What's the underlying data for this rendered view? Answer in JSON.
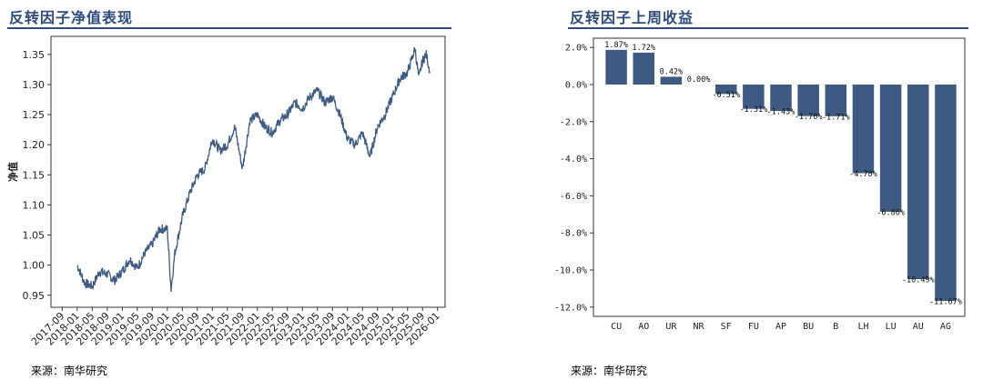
{
  "left_panel": {
    "title": "反转因子净值表现",
    "source": "来源：南华研究"
  },
  "right_panel": {
    "title": "反转因子上周收益",
    "source": "来源：南华研究"
  },
  "colors": {
    "accent": "#2e4a7a",
    "series": "#3f5a80",
    "bar": "#3f5a80"
  },
  "chart_data": [
    {
      "type": "line",
      "title": "反转因子净值表现",
      "ylabel": "净值",
      "xlabel": "",
      "grid": false,
      "x_ticks": [
        "2017-09",
        "2018-01",
        "2018-05",
        "2018-09",
        "2019-01",
        "2019-05",
        "2019-09",
        "2020-01",
        "2020-05",
        "2020-09",
        "2021-01",
        "2021-05",
        "2021-09",
        "2022-01",
        "2022-05",
        "2022-09",
        "2023-01",
        "2023-05",
        "2023-09",
        "2024-01",
        "2024-05",
        "2024-09",
        "2025-01",
        "2025-05",
        "2025-09",
        "2026-01"
      ],
      "y_ticks": [
        "0.95",
        "1.00",
        "1.05",
        "1.10",
        "1.15",
        "1.20",
        "1.25",
        "1.30",
        "1.35"
      ],
      "xlim": [
        "2017-06",
        "2026-03"
      ],
      "ylim": [
        0.93,
        1.38
      ],
      "series": [
        {
          "x": [
            "2018-01",
            "2018-03",
            "2018-05",
            "2018-07",
            "2018-09",
            "2018-11",
            "2019-01",
            "2019-03",
            "2019-05",
            "2019-07",
            "2019-09",
            "2019-11",
            "2020-01",
            "2020-02",
            "2020-03",
            "2020-05",
            "2020-07",
            "2020-09",
            "2020-11",
            "2021-01",
            "2021-03",
            "2021-05",
            "2021-07",
            "2021-09",
            "2021-11",
            "2022-01",
            "2022-03",
            "2022-05",
            "2022-07",
            "2022-09",
            "2022-11",
            "2023-01",
            "2023-03",
            "2023-05",
            "2023-07",
            "2023-09",
            "2023-11",
            "2024-01",
            "2024-03",
            "2024-05",
            "2024-07",
            "2024-09",
            "2024-11",
            "2025-01",
            "2025-03",
            "2025-05",
            "2025-07",
            "2025-08",
            "2025-09",
            "2025-10",
            "2025-11"
          ],
          "y": [
            1.0,
            0.97,
            0.965,
            0.99,
            0.985,
            0.975,
            0.99,
            1.01,
            0.995,
            1.02,
            1.035,
            1.06,
            1.06,
            0.96,
            1.02,
            1.08,
            1.12,
            1.15,
            1.16,
            1.21,
            1.19,
            1.2,
            1.23,
            1.16,
            1.24,
            1.25,
            1.23,
            1.22,
            1.24,
            1.25,
            1.27,
            1.26,
            1.28,
            1.29,
            1.27,
            1.28,
            1.25,
            1.21,
            1.2,
            1.22,
            1.18,
            1.23,
            1.25,
            1.28,
            1.31,
            1.32,
            1.36,
            1.31,
            1.34,
            1.35,
            1.32
          ]
        }
      ]
    },
    {
      "type": "bar",
      "title": "反转因子上周收益",
      "categories": [
        "CU",
        "AO",
        "UR",
        "NR",
        "SF",
        "FU",
        "AP",
        "BU",
        "B",
        "LH",
        "LU",
        "AU",
        "AG"
      ],
      "values": [
        1.87,
        1.72,
        0.42,
        0.0,
        -0.51,
        -1.31,
        -1.43,
        -1.7,
        -1.71,
        -4.78,
        -6.86,
        -10.49,
        -11.67
      ],
      "value_labels": [
        "1.87%",
        "1.72%",
        "0.42%",
        "0.00%",
        "-0.51%",
        "-1.31%",
        "-1.43%",
        "-1.70%",
        "-1.71%",
        "-4.78%",
        "-6.86%",
        "-10.49%",
        "-11.67%"
      ],
      "y_ticks": [
        "2.0%",
        "0.0%",
        "-2.0%",
        "-4.0%",
        "-6.0%",
        "-8.0%",
        "-10.0%",
        "-12.0%"
      ],
      "ylim": [
        -12.5,
        2.5
      ],
      "grid": false
    }
  ]
}
